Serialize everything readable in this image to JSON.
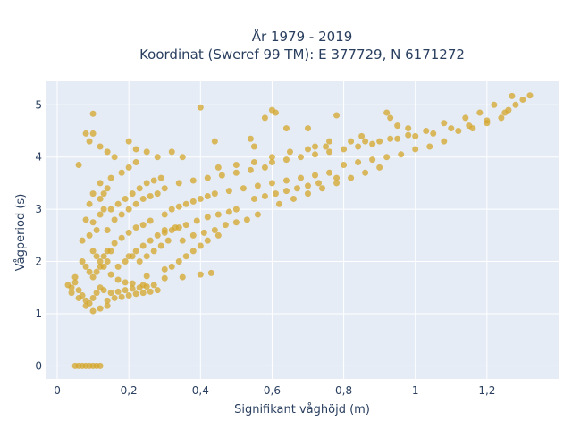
{
  "chart_data": {
    "type": "scatter",
    "title_line1": "År 1979 - 2019",
    "title_line2": "Koordinat (Sweref 99 TM): E 377729, N 6171272",
    "xlabel": "Signifikant våghöjd (m)",
    "ylabel": "Vågperiod (s)",
    "xlim": [
      -0.03,
      1.4
    ],
    "ylim": [
      -0.25,
      5.45
    ],
    "xticks": [
      0,
      0.2,
      0.4,
      0.6,
      0.8,
      1,
      1.2
    ],
    "xtick_labels": [
      "0",
      "0,2",
      "0,4",
      "0,6",
      "0,8",
      "1",
      "1,2"
    ],
    "yticks": [
      0,
      1,
      2,
      3,
      4,
      5
    ],
    "ytick_labels": [
      "0",
      "1",
      "2",
      "3",
      "4",
      "5"
    ],
    "grid": true,
    "plot_background": "#e5ecf6",
    "marker_color": "#d4a52a",
    "marker_opacity": 0.75,
    "points": [
      [
        0.05,
        0.0
      ],
      [
        0.06,
        0.0
      ],
      [
        0.07,
        0.0
      ],
      [
        0.08,
        0.0
      ],
      [
        0.09,
        0.0
      ],
      [
        0.1,
        0.0
      ],
      [
        0.11,
        0.0
      ],
      [
        0.12,
        0.0
      ],
      [
        0.1,
        4.83
      ],
      [
        0.08,
        4.45
      ],
      [
        0.09,
        4.3
      ],
      [
        0.1,
        4.45
      ],
      [
        0.06,
        3.85
      ],
      [
        0.12,
        4.2
      ],
      [
        0.14,
        4.1
      ],
      [
        0.16,
        4.0
      ],
      [
        0.2,
        4.3
      ],
      [
        0.22,
        4.15
      ],
      [
        0.25,
        4.1
      ],
      [
        0.28,
        4.0
      ],
      [
        0.32,
        4.1
      ],
      [
        0.35,
        4.0
      ],
      [
        0.4,
        4.95
      ],
      [
        0.44,
        4.3
      ],
      [
        0.54,
        4.35
      ],
      [
        0.55,
        4.2
      ],
      [
        0.6,
        4.9
      ],
      [
        0.61,
        4.85
      ],
      [
        0.58,
        4.75
      ],
      [
        0.64,
        4.55
      ],
      [
        0.7,
        4.55
      ],
      [
        0.78,
        4.8
      ],
      [
        0.72,
        4.2
      ],
      [
        0.76,
        4.3
      ],
      [
        0.82,
        4.3
      ],
      [
        0.86,
        4.3
      ],
      [
        0.92,
        4.85
      ],
      [
        0.93,
        4.75
      ],
      [
        0.95,
        4.6
      ],
      [
        0.98,
        4.55
      ],
      [
        0.4,
        1.75
      ],
      [
        0.43,
        1.78
      ],
      [
        0.35,
        1.7
      ],
      [
        0.3,
        1.68
      ],
      [
        0.25,
        1.72
      ],
      [
        0.04,
        1.5
      ],
      [
        0.04,
        1.4
      ],
      [
        0.06,
        1.3
      ],
      [
        0.08,
        1.15
      ],
      [
        0.1,
        1.05
      ],
      [
        0.12,
        1.1
      ],
      [
        0.14,
        1.15
      ],
      [
        0.03,
        1.55
      ],
      [
        0.05,
        1.7
      ],
      [
        0.07,
        2.0
      ],
      [
        0.07,
        2.4
      ],
      [
        0.08,
        2.8
      ],
      [
        0.09,
        3.1
      ],
      [
        0.1,
        3.3
      ],
      [
        0.12,
        3.5
      ],
      [
        0.15,
        3.6
      ],
      [
        0.18,
        3.7
      ],
      [
        0.2,
        3.8
      ],
      [
        0.22,
        3.9
      ],
      [
        0.09,
        2.5
      ],
      [
        0.11,
        2.1
      ],
      [
        0.13,
        1.9
      ],
      [
        0.15,
        1.75
      ],
      [
        0.17,
        1.65
      ],
      [
        0.19,
        1.6
      ],
      [
        0.21,
        1.58
      ],
      [
        0.24,
        1.55
      ],
      [
        0.14,
        2.6
      ],
      [
        0.16,
        2.8
      ],
      [
        0.18,
        2.9
      ],
      [
        0.2,
        3.0
      ],
      [
        0.22,
        3.1
      ],
      [
        0.24,
        3.2
      ],
      [
        0.26,
        3.25
      ],
      [
        0.28,
        3.3
      ],
      [
        0.12,
        2.0
      ],
      [
        0.14,
        2.2
      ],
      [
        0.16,
        2.35
      ],
      [
        0.18,
        2.45
      ],
      [
        0.2,
        2.55
      ],
      [
        0.22,
        2.65
      ],
      [
        0.24,
        2.7
      ],
      [
        0.26,
        2.78
      ],
      [
        0.3,
        2.9
      ],
      [
        0.32,
        3.0
      ],
      [
        0.34,
        3.05
      ],
      [
        0.36,
        3.1
      ],
      [
        0.38,
        3.15
      ],
      [
        0.4,
        3.2
      ],
      [
        0.42,
        3.25
      ],
      [
        0.44,
        3.3
      ],
      [
        0.3,
        2.6
      ],
      [
        0.33,
        2.65
      ],
      [
        0.36,
        2.7
      ],
      [
        0.39,
        2.78
      ],
      [
        0.42,
        2.85
      ],
      [
        0.45,
        2.9
      ],
      [
        0.48,
        2.95
      ],
      [
        0.5,
        3.0
      ],
      [
        0.3,
        3.4
      ],
      [
        0.34,
        3.5
      ],
      [
        0.38,
        3.55
      ],
      [
        0.42,
        3.6
      ],
      [
        0.46,
        3.65
      ],
      [
        0.5,
        3.7
      ],
      [
        0.54,
        3.75
      ],
      [
        0.58,
        3.8
      ],
      [
        0.48,
        3.35
      ],
      [
        0.52,
        3.4
      ],
      [
        0.56,
        3.45
      ],
      [
        0.6,
        3.5
      ],
      [
        0.64,
        3.55
      ],
      [
        0.68,
        3.6
      ],
      [
        0.72,
        3.65
      ],
      [
        0.76,
        3.7
      ],
      [
        0.6,
        3.9
      ],
      [
        0.64,
        3.95
      ],
      [
        0.68,
        4.0
      ],
      [
        0.72,
        4.05
      ],
      [
        0.76,
        4.1
      ],
      [
        0.8,
        4.15
      ],
      [
        0.84,
        4.2
      ],
      [
        0.88,
        4.25
      ],
      [
        0.8,
        3.85
      ],
      [
        0.84,
        3.9
      ],
      [
        0.88,
        3.95
      ],
      [
        0.92,
        4.0
      ],
      [
        0.96,
        4.05
      ],
      [
        1.0,
        4.15
      ],
      [
        1.04,
        4.2
      ],
      [
        1.08,
        4.3
      ],
      [
        0.9,
        4.3
      ],
      [
        0.95,
        4.35
      ],
      [
        1.0,
        4.4
      ],
      [
        1.05,
        4.45
      ],
      [
        1.1,
        4.55
      ],
      [
        1.15,
        4.6
      ],
      [
        1.2,
        4.7
      ],
      [
        1.25,
        4.85
      ],
      [
        1.12,
        4.5
      ],
      [
        1.16,
        4.55
      ],
      [
        1.2,
        4.65
      ],
      [
        1.24,
        4.75
      ],
      [
        1.26,
        4.9
      ],
      [
        1.28,
        5.0
      ],
      [
        1.3,
        5.1
      ],
      [
        1.32,
        5.18
      ],
      [
        1.27,
        5.17
      ],
      [
        1.22,
        5.0
      ],
      [
        1.18,
        4.85
      ],
      [
        1.14,
        4.75
      ],
      [
        1.08,
        4.65
      ],
      [
        1.03,
        4.5
      ],
      [
        0.98,
        4.42
      ],
      [
        0.93,
        4.35
      ],
      [
        0.05,
        1.6
      ],
      [
        0.06,
        1.45
      ],
      [
        0.07,
        1.35
      ],
      [
        0.08,
        1.25
      ],
      [
        0.09,
        1.2
      ],
      [
        0.1,
        1.3
      ],
      [
        0.11,
        1.4
      ],
      [
        0.12,
        1.5
      ],
      [
        0.13,
        1.45
      ],
      [
        0.15,
        1.4
      ],
      [
        0.17,
        1.42
      ],
      [
        0.19,
        1.45
      ],
      [
        0.21,
        1.48
      ],
      [
        0.23,
        1.5
      ],
      [
        0.25,
        1.52
      ],
      [
        0.27,
        1.55
      ],
      [
        0.14,
        1.25
      ],
      [
        0.16,
        1.3
      ],
      [
        0.18,
        1.32
      ],
      [
        0.2,
        1.35
      ],
      [
        0.22,
        1.38
      ],
      [
        0.24,
        1.4
      ],
      [
        0.26,
        1.42
      ],
      [
        0.28,
        1.45
      ],
      [
        0.1,
        2.75
      ],
      [
        0.1,
        2.2
      ],
      [
        0.11,
        2.6
      ],
      [
        0.12,
        2.9
      ],
      [
        0.13,
        3.0
      ],
      [
        0.12,
        3.2
      ],
      [
        0.13,
        3.3
      ],
      [
        0.14,
        3.4
      ],
      [
        0.35,
        2.4
      ],
      [
        0.38,
        2.5
      ],
      [
        0.41,
        2.55
      ],
      [
        0.44,
        2.6
      ],
      [
        0.47,
        2.7
      ],
      [
        0.5,
        2.75
      ],
      [
        0.53,
        2.8
      ],
      [
        0.56,
        2.9
      ],
      [
        0.55,
        3.2
      ],
      [
        0.58,
        3.25
      ],
      [
        0.61,
        3.3
      ],
      [
        0.64,
        3.35
      ],
      [
        0.67,
        3.4
      ],
      [
        0.7,
        3.45
      ],
      [
        0.73,
        3.5
      ],
      [
        0.78,
        3.6
      ],
      [
        0.62,
        3.1
      ],
      [
        0.66,
        3.2
      ],
      [
        0.7,
        3.3
      ],
      [
        0.74,
        3.4
      ],
      [
        0.78,
        3.5
      ],
      [
        0.82,
        3.6
      ],
      [
        0.86,
        3.7
      ],
      [
        0.9,
        3.8
      ],
      [
        0.3,
        1.85
      ],
      [
        0.32,
        1.9
      ],
      [
        0.34,
        2.0
      ],
      [
        0.36,
        2.1
      ],
      [
        0.38,
        2.2
      ],
      [
        0.4,
        2.3
      ],
      [
        0.42,
        2.4
      ],
      [
        0.45,
        2.5
      ],
      [
        0.2,
        2.1
      ],
      [
        0.22,
        2.2
      ],
      [
        0.24,
        2.3
      ],
      [
        0.26,
        2.4
      ],
      [
        0.28,
        2.5
      ],
      [
        0.3,
        2.55
      ],
      [
        0.32,
        2.6
      ],
      [
        0.34,
        2.65
      ],
      [
        0.15,
        3.0
      ],
      [
        0.17,
        3.1
      ],
      [
        0.19,
        3.2
      ],
      [
        0.21,
        3.3
      ],
      [
        0.23,
        3.4
      ],
      [
        0.25,
        3.5
      ],
      [
        0.27,
        3.55
      ],
      [
        0.29,
        3.6
      ],
      [
        0.45,
        3.8
      ],
      [
        0.5,
        3.85
      ],
      [
        0.55,
        3.9
      ],
      [
        0.6,
        4.0
      ],
      [
        0.65,
        4.1
      ],
      [
        0.7,
        4.15
      ],
      [
        0.75,
        4.2
      ],
      [
        0.85,
        4.4
      ],
      [
        0.08,
        1.9
      ],
      [
        0.09,
        1.8
      ],
      [
        0.1,
        1.7
      ],
      [
        0.11,
        1.8
      ],
      [
        0.12,
        1.9
      ],
      [
        0.13,
        2.1
      ],
      [
        0.14,
        2.0
      ],
      [
        0.15,
        2.2
      ],
      [
        0.17,
        1.9
      ],
      [
        0.19,
        2.0
      ],
      [
        0.21,
        2.1
      ],
      [
        0.23,
        2.0
      ],
      [
        0.25,
        2.1
      ],
      [
        0.27,
        2.2
      ],
      [
        0.29,
        2.3
      ],
      [
        0.31,
        2.4
      ]
    ]
  }
}
